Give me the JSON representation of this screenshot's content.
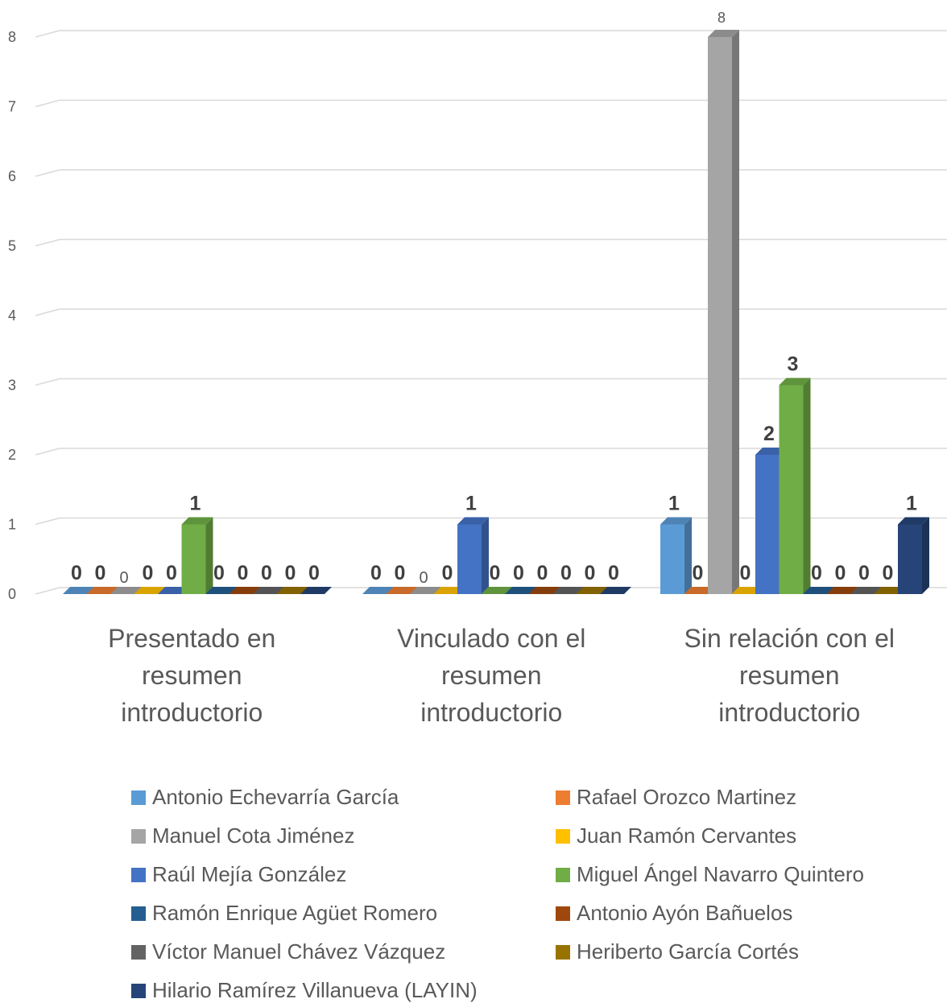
{
  "chart_data": {
    "type": "bar",
    "categories": [
      "Presentado en resumen introductorio",
      "Vinculado con el resumen introductorio",
      "Sin relación con el resumen introductorio"
    ],
    "category_lines": [
      [
        "Presentado en",
        "resumen",
        "introductorio"
      ],
      [
        "Vinculado con el",
        "resumen",
        "introductorio"
      ],
      [
        "Sin relación con el",
        "resumen",
        "introductorio"
      ]
    ],
    "y_ticks": [
      "0",
      "1",
      "2",
      "3",
      "4",
      "5",
      "6",
      "7",
      "8"
    ],
    "ylim": [
      0,
      8
    ],
    "grid": true,
    "legend_position": "bottom",
    "series": [
      {
        "name": "Antonio Echevarría García",
        "color": "#5b9bd5",
        "values": [
          0,
          0,
          1
        ]
      },
      {
        "name": "Rafael Orozco Martinez",
        "color": "#ed7d31",
        "values": [
          0,
          0,
          0
        ]
      },
      {
        "name": "Manuel Cota Jiménez",
        "color": "#a5a5a5",
        "values": [
          0,
          0,
          8
        ]
      },
      {
        "name": "Juan Ramón Cervantes",
        "color": "#ffc000",
        "values": [
          0,
          0,
          0
        ]
      },
      {
        "name": "Raúl Mejía González",
        "color": "#4472c4",
        "values": [
          0,
          1,
          2
        ]
      },
      {
        "name": "Miguel Ángel Navarro Quintero",
        "color": "#70ad47",
        "values": [
          1,
          0,
          3
        ]
      },
      {
        "name": "Ramón Enrique Agüet Romero",
        "color": "#255e91",
        "values": [
          0,
          0,
          0
        ]
      },
      {
        "name": "Antonio Ayón Bañuelos",
        "color": "#9e480e",
        "values": [
          0,
          0,
          0
        ]
      },
      {
        "name": "Víctor Manuel Chávez Vázquez",
        "color": "#636363",
        "values": [
          0,
          0,
          0
        ]
      },
      {
        "name": "Heriberto García Cortés",
        "color": "#997300",
        "values": [
          0,
          0,
          0
        ]
      },
      {
        "name": "Hilario Ramírez Villanueva (LAYIN)",
        "color": "#264478",
        "values": [
          0,
          0,
          1
        ]
      }
    ],
    "data_labels": [
      [
        "0",
        "0",
        "0",
        "0",
        "0",
        "1",
        "0",
        "0",
        "0",
        "0",
        "0"
      ],
      [
        "0",
        "0",
        "0",
        "0",
        "1",
        "0",
        "0",
        "0",
        "0",
        "0",
        "0"
      ],
      [
        "1",
        "0",
        "8",
        "0",
        "2",
        "3",
        "0",
        "0",
        "0",
        "0",
        "1"
      ]
    ]
  }
}
